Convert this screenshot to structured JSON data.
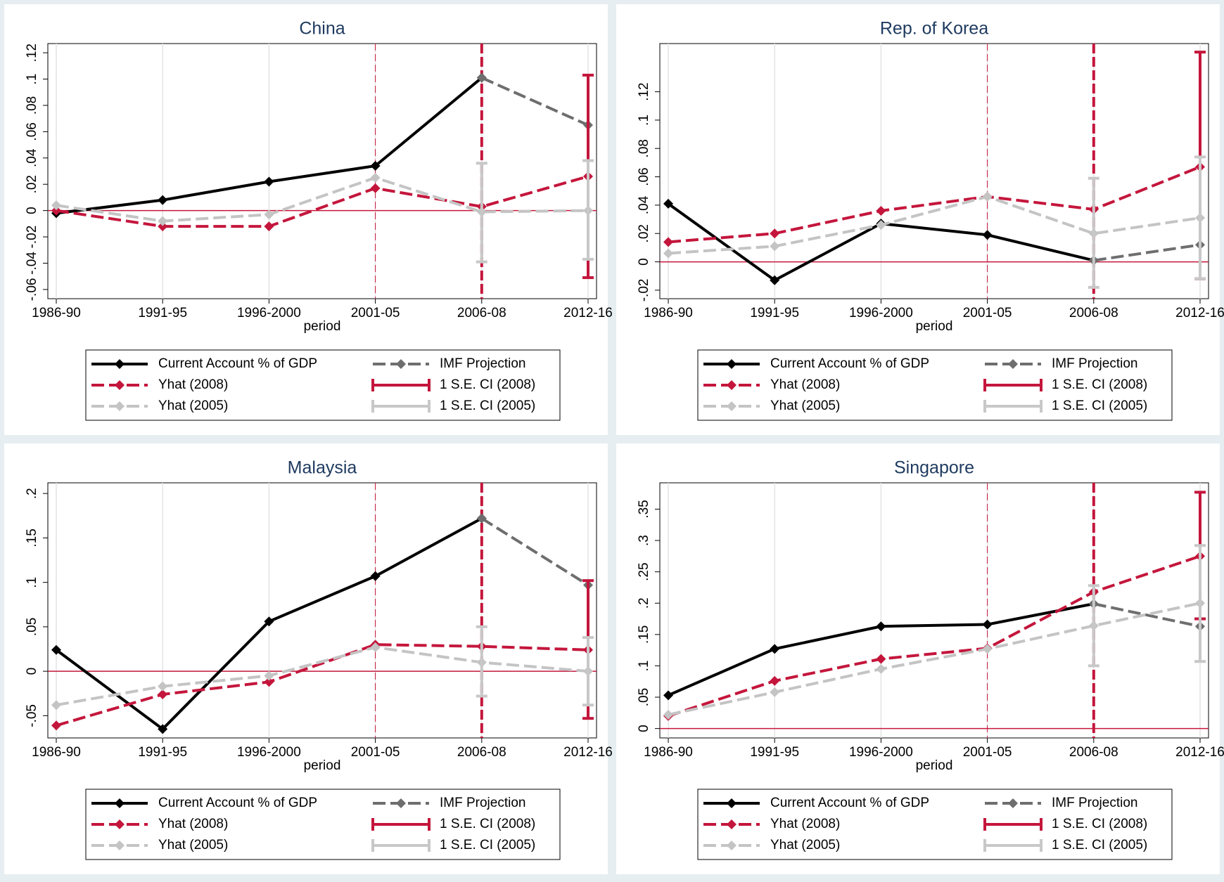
{
  "chart_data": [
    {
      "type": "line",
      "title": "China",
      "xlabel": "period",
      "categories": [
        "1986-90",
        "1991-95",
        "1996-2000",
        "2001-05",
        "2006-08",
        "2012-16"
      ],
      "ylim": [
        -0.067,
        0.127
      ],
      "yticks": [
        {
          "value": -0.06,
          "label": "-.06"
        },
        {
          "value": -0.04,
          "label": "-.04"
        },
        {
          "value": -0.02,
          "label": "-.02"
        },
        0,
        {
          "value": 0.02,
          "label": ".02"
        },
        {
          "value": 0.04,
          "label": ".04"
        },
        {
          "value": 0.06,
          "label": ".06"
        },
        {
          "value": 0.08,
          "label": ".08"
        },
        {
          "value": 0.1,
          "label": ".1"
        },
        {
          "value": 0.12,
          "label": ".12"
        }
      ],
      "xgrid": true,
      "yline": 0,
      "xlines": [
        {
          "at": "2001-05",
          "style": "thin"
        },
        {
          "at": "2006-08",
          "style": "thick"
        }
      ],
      "series": [
        {
          "name": "Current Account % of GDP",
          "type": "line",
          "color": "#000000",
          "style": "solid",
          "values": [
            -0.002,
            0.008,
            0.022,
            0.034,
            0.101,
            null
          ]
        },
        {
          "name": "IMF Projection",
          "type": "line",
          "color": "#6e6e6e",
          "style": "dash",
          "values": [
            null,
            null,
            null,
            null,
            0.101,
            0.065
          ]
        },
        {
          "name": "Yhat (2008)",
          "type": "line",
          "color": "#c4163c",
          "style": "dash",
          "values": [
            0.0,
            -0.012,
            -0.012,
            0.017,
            0.003,
            0.026
          ]
        },
        {
          "name": "1 S.E. CI (2008)",
          "type": "ci",
          "color": "#c4163c",
          "low": [
            null,
            null,
            null,
            null,
            null,
            -0.051
          ],
          "high": [
            null,
            null,
            null,
            null,
            null,
            0.103
          ]
        },
        {
          "name": "Yhat (2005)",
          "type": "line",
          "color": "#c4c4c4",
          "style": "dash",
          "values": [
            0.004,
            -0.008,
            -0.003,
            0.025,
            -0.001,
            0.0
          ]
        },
        {
          "name": "1 S.E. CI (2005)",
          "type": "ci",
          "color": "#c8c8c8",
          "low": [
            null,
            null,
            null,
            null,
            -0.039,
            -0.037
          ],
          "high": [
            null,
            null,
            null,
            null,
            0.036,
            0.038
          ]
        }
      ]
    },
    {
      "type": "line",
      "title": "Rep. of Korea",
      "xlabel": "period",
      "categories": [
        "1986-90",
        "1991-95",
        "1996-2000",
        "2001-05",
        "2006-08",
        "2012-16"
      ],
      "ylim": [
        -0.026,
        0.154
      ],
      "yticks": [
        {
          "value": -0.02,
          "label": "-.02"
        },
        0,
        {
          "value": 0.02,
          "label": ".02"
        },
        {
          "value": 0.04,
          "label": ".04"
        },
        {
          "value": 0.06,
          "label": ".06"
        },
        {
          "value": 0.08,
          "label": ".08"
        },
        {
          "value": 0.1,
          "label": ".1"
        },
        {
          "value": 0.12,
          "label": ".12"
        }
      ],
      "xgrid": true,
      "yline": 0,
      "xlines": [
        {
          "at": "2001-05",
          "style": "thin"
        },
        {
          "at": "2006-08",
          "style": "thick"
        }
      ],
      "series": [
        {
          "name": "Current Account % of GDP",
          "type": "line",
          "color": "#000000",
          "style": "solid",
          "values": [
            0.041,
            -0.013,
            0.027,
            0.019,
            0.001,
            null
          ]
        },
        {
          "name": "IMF Projection",
          "type": "line",
          "color": "#6e6e6e",
          "style": "dash",
          "values": [
            null,
            null,
            null,
            null,
            0.001,
            0.012
          ]
        },
        {
          "name": "Yhat (2008)",
          "type": "line",
          "color": "#c4163c",
          "style": "dash",
          "values": [
            0.014,
            0.02,
            0.036,
            0.046,
            0.037,
            0.067
          ]
        },
        {
          "name": "1 S.E. CI (2008)",
          "type": "ci",
          "color": "#c4163c",
          "low": [
            null,
            null,
            null,
            null,
            null,
            -0.012
          ],
          "high": [
            null,
            null,
            null,
            null,
            null,
            0.148
          ]
        },
        {
          "name": "Yhat (2005)",
          "type": "line",
          "color": "#c4c4c4",
          "style": "dash",
          "values": [
            0.006,
            0.011,
            0.026,
            0.046,
            0.02,
            0.031
          ]
        },
        {
          "name": "1 S.E. CI (2005)",
          "type": "ci",
          "color": "#c8c8c8",
          "low": [
            null,
            null,
            null,
            null,
            -0.018,
            -0.012
          ],
          "high": [
            null,
            null,
            null,
            null,
            0.059,
            0.074
          ]
        }
      ]
    },
    {
      "type": "line",
      "title": "Malaysia",
      "xlabel": "period",
      "categories": [
        "1986-90",
        "1991-95",
        "1996-2000",
        "2001-05",
        "2006-08",
        "2012-16"
      ],
      "ylim": [
        -0.075,
        0.212
      ],
      "yticks": [
        {
          "value": -0.05,
          "label": "-.05"
        },
        0,
        {
          "value": 0.05,
          "label": ".05"
        },
        {
          "value": 0.1,
          "label": ".1"
        },
        {
          "value": 0.15,
          "label": ".15"
        },
        {
          "value": 0.2,
          "label": ".2"
        }
      ],
      "xgrid": true,
      "yline": 0,
      "xlines": [
        {
          "at": "2001-05",
          "style": "thin"
        },
        {
          "at": "2006-08",
          "style": "thick"
        }
      ],
      "series": [
        {
          "name": "Current Account % of GDP",
          "type": "line",
          "color": "#000000",
          "style": "solid",
          "values": [
            0.024,
            -0.065,
            0.056,
            0.107,
            0.172,
            null
          ]
        },
        {
          "name": "IMF Projection",
          "type": "line",
          "color": "#6e6e6e",
          "style": "dash",
          "values": [
            null,
            null,
            null,
            null,
            0.172,
            0.097
          ]
        },
        {
          "name": "Yhat (2008)",
          "type": "line",
          "color": "#c4163c",
          "style": "dash",
          "values": [
            -0.061,
            -0.026,
            -0.012,
            0.03,
            0.028,
            0.024
          ]
        },
        {
          "name": "1 S.E. CI (2008)",
          "type": "ci",
          "color": "#c4163c",
          "low": [
            null,
            null,
            null,
            null,
            null,
            -0.053
          ],
          "high": [
            null,
            null,
            null,
            null,
            null,
            0.102
          ]
        },
        {
          "name": "Yhat (2005)",
          "type": "line",
          "color": "#c4c4c4",
          "style": "dash",
          "values": [
            -0.038,
            -0.017,
            -0.005,
            0.027,
            0.01,
            0.0
          ]
        },
        {
          "name": "1 S.E. CI (2005)",
          "type": "ci",
          "color": "#c8c8c8",
          "low": [
            null,
            null,
            null,
            null,
            -0.028,
            -0.038
          ],
          "high": [
            null,
            null,
            null,
            null,
            0.05,
            0.038
          ]
        }
      ]
    },
    {
      "type": "line",
      "title": "Singapore",
      "xlabel": "period",
      "categories": [
        "1986-90",
        "1991-95",
        "1996-2000",
        "2001-05",
        "2006-08",
        "2012-16"
      ],
      "ylim": [
        -0.015,
        0.392
      ],
      "yticks": [
        0,
        {
          "value": 0.05,
          "label": ".05"
        },
        {
          "value": 0.1,
          "label": ".1"
        },
        {
          "value": 0.15,
          "label": ".15"
        },
        {
          "value": 0.2,
          "label": ".2"
        },
        {
          "value": 0.25,
          "label": ".25"
        },
        {
          "value": 0.3,
          "label": ".3"
        },
        {
          "value": 0.35,
          "label": ".35"
        }
      ],
      "xgrid": true,
      "yline": 0,
      "xlines": [
        {
          "at": "2001-05",
          "style": "thin"
        },
        {
          "at": "2006-08",
          "style": "thick"
        }
      ],
      "series": [
        {
          "name": "Current Account % of GDP",
          "type": "line",
          "color": "#000000",
          "style": "solid",
          "values": [
            0.053,
            0.127,
            0.163,
            0.166,
            0.199,
            null
          ]
        },
        {
          "name": "IMF Projection",
          "type": "line",
          "color": "#6e6e6e",
          "style": "dash",
          "values": [
            null,
            null,
            null,
            null,
            0.199,
            0.163
          ]
        },
        {
          "name": "Yhat (2008)",
          "type": "line",
          "color": "#c4163c",
          "style": "dash",
          "values": [
            0.02,
            0.076,
            0.111,
            0.128,
            0.218,
            0.275
          ]
        },
        {
          "name": "1 S.E. CI (2008)",
          "type": "ci",
          "color": "#c4163c",
          "low": [
            null,
            null,
            null,
            null,
            null,
            0.175
          ],
          "high": [
            null,
            null,
            null,
            null,
            null,
            0.377
          ]
        },
        {
          "name": "Yhat (2005)",
          "type": "line",
          "color": "#c4c4c4",
          "style": "dash",
          "values": [
            0.022,
            0.058,
            0.095,
            0.127,
            0.164,
            0.2
          ]
        },
        {
          "name": "1 S.E. CI (2005)",
          "type": "ci",
          "color": "#c8c8c8",
          "low": [
            null,
            null,
            null,
            null,
            0.1,
            0.107
          ],
          "high": [
            null,
            null,
            null,
            null,
            0.228,
            0.292
          ]
        }
      ]
    }
  ]
}
